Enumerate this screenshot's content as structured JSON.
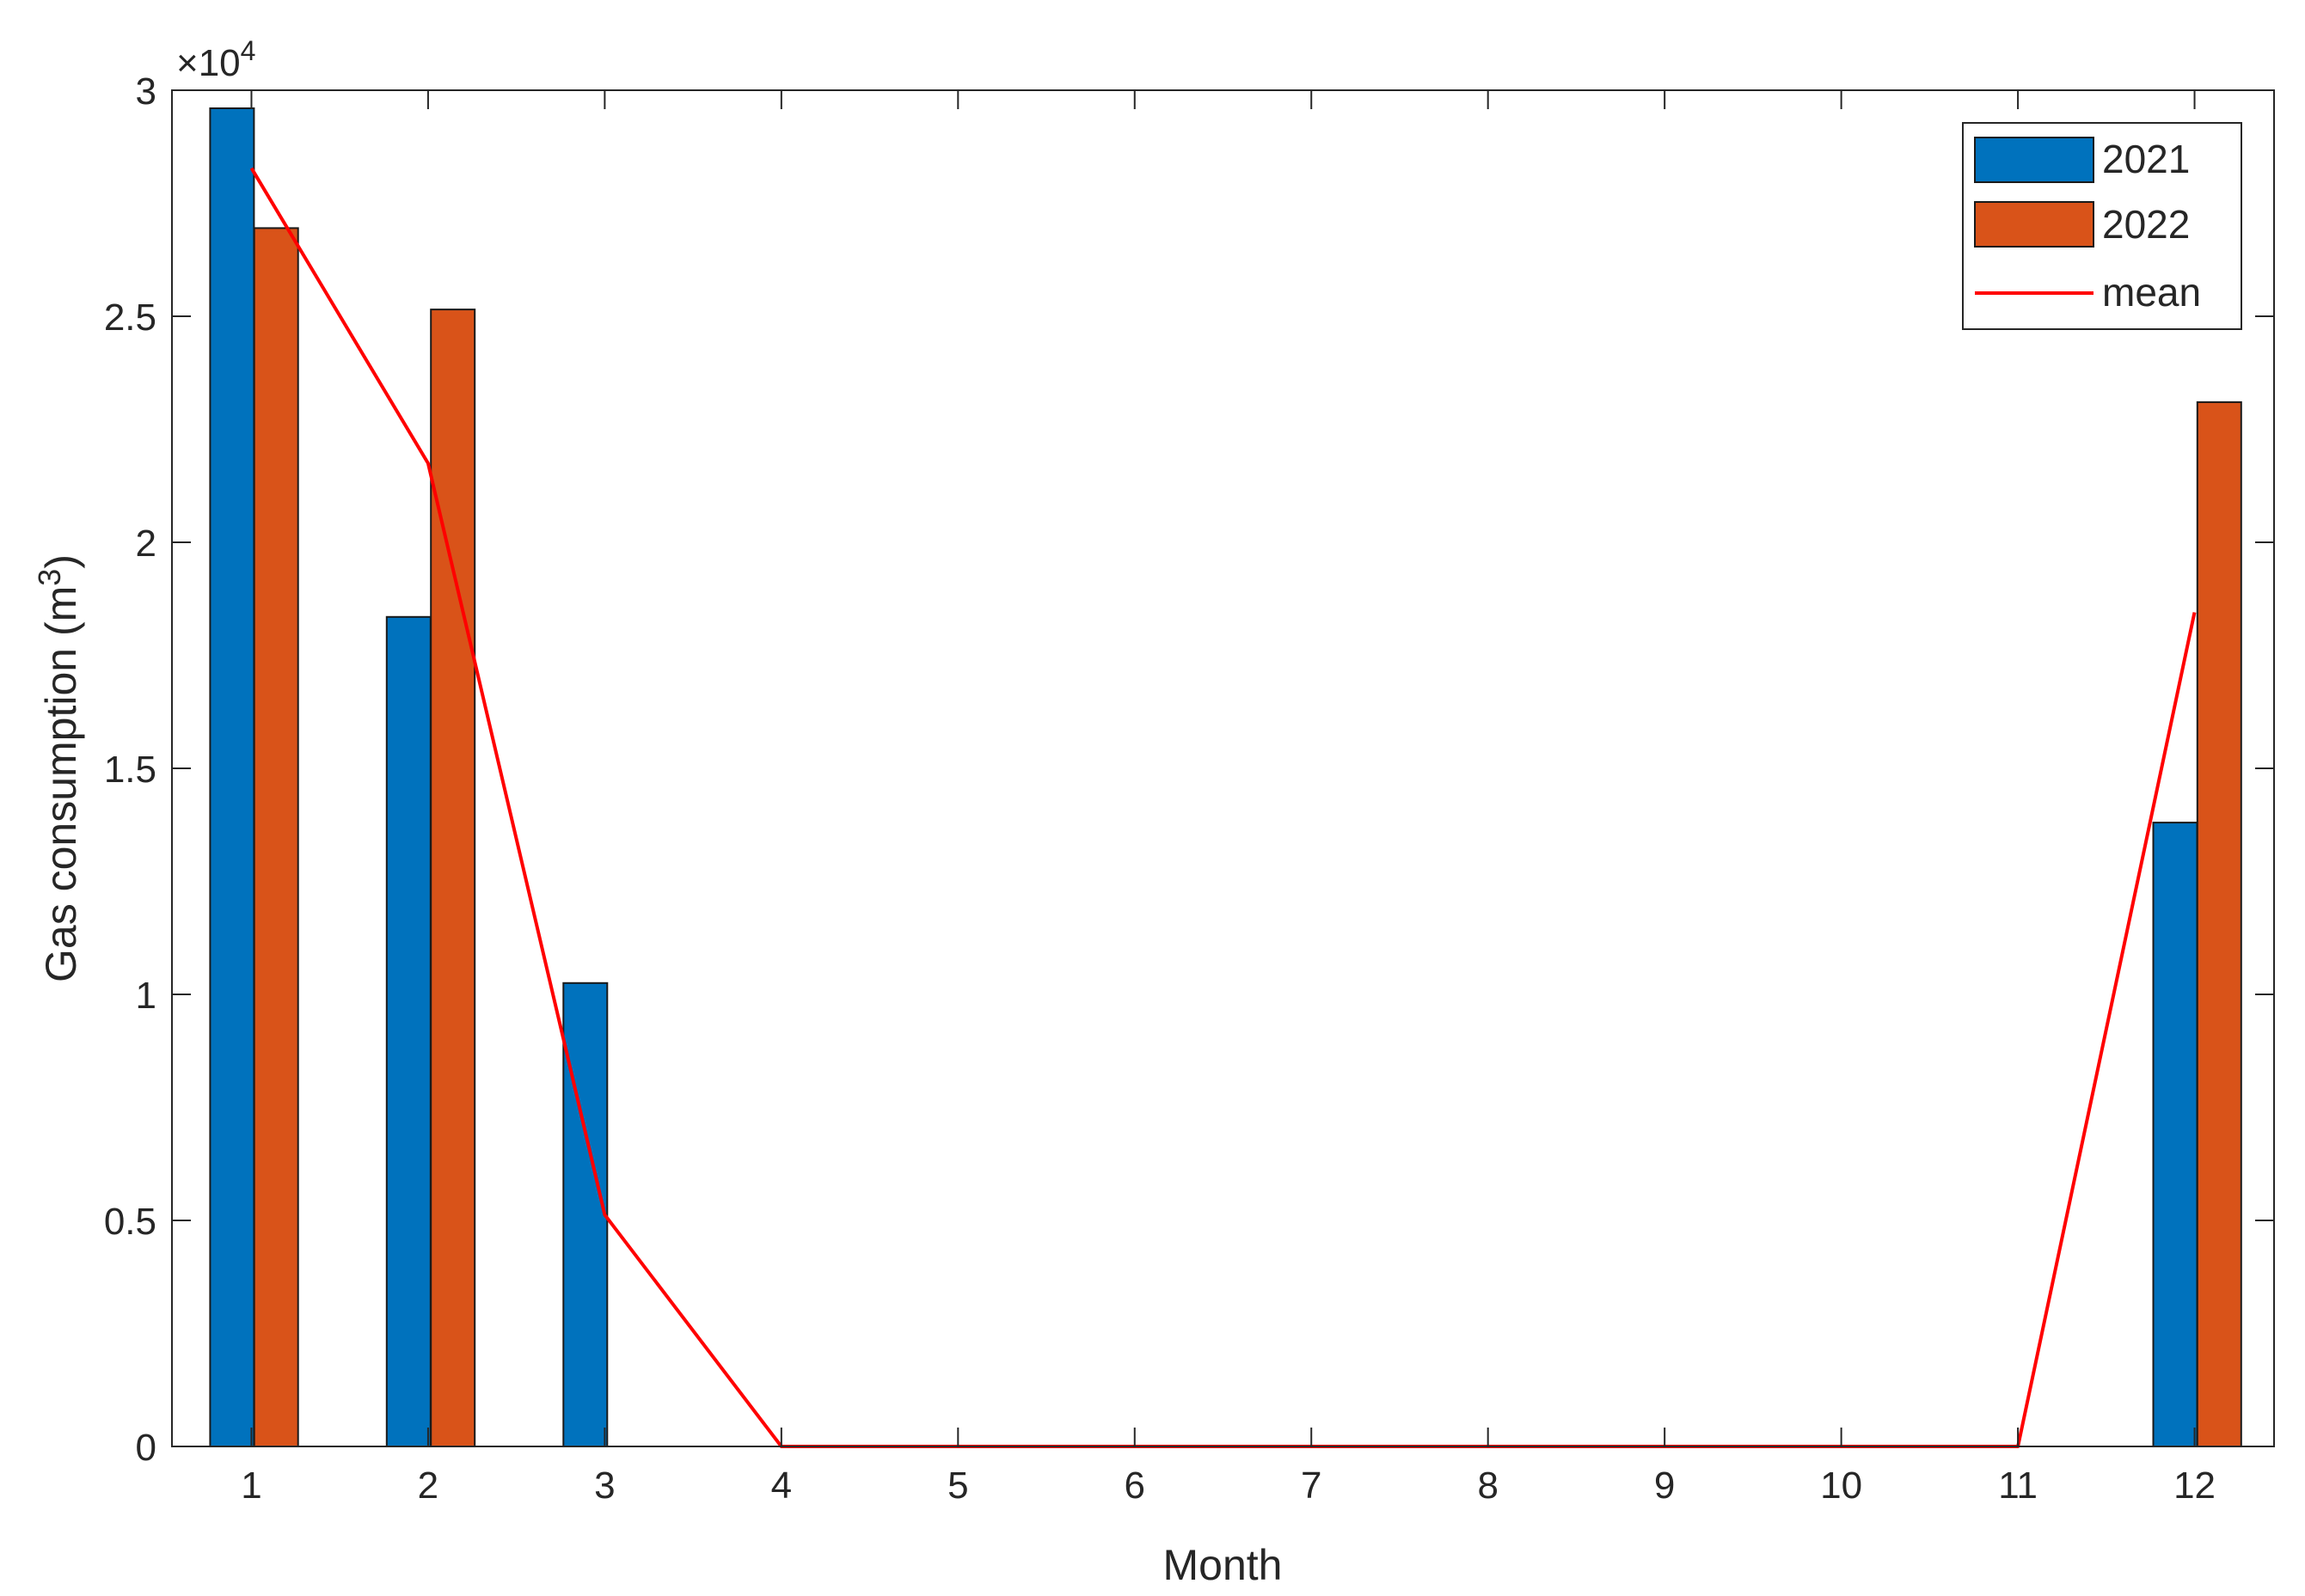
{
  "chart_data": {
    "type": "bar",
    "x": [
      1,
      2,
      3,
      4,
      5,
      6,
      7,
      8,
      9,
      10,
      11,
      12
    ],
    "xtick_labels": [
      "1",
      "2",
      "3",
      "4",
      "5",
      "6",
      "7",
      "8",
      "9",
      "10",
      "11",
      "12"
    ],
    "xlabel": "Month",
    "ylabel": "Gas consumption (m",
    "ylabel_superscript": "3",
    "ylabel_suffix": ")",
    "ylim": [
      0,
      30000
    ],
    "yticks": [
      0,
      5000,
      10000,
      15000,
      20000,
      25000,
      30000
    ],
    "ytick_labels": [
      "0",
      "0.5",
      "1",
      "1.5",
      "2",
      "2.5",
      "3"
    ],
    "exponent_prefix": "×10",
    "exponent_power": "4",
    "grid": false,
    "legend_position": "top-right",
    "series": [
      {
        "name": "2021",
        "type": "bar",
        "color": "#0072BD",
        "values": [
          29600,
          18350,
          10250,
          0,
          0,
          0,
          0,
          0,
          0,
          0,
          0,
          13800
        ]
      },
      {
        "name": "2022",
        "type": "bar",
        "color": "#D95319",
        "values": [
          26950,
          25150,
          0,
          0,
          0,
          0,
          0,
          0,
          0,
          0,
          0,
          23100
        ]
      },
      {
        "name": "mean",
        "type": "line",
        "color": "#FF0000",
        "values": [
          28275,
          21750,
          5125,
          0,
          0,
          0,
          0,
          0,
          0,
          0,
          0,
          18450
        ]
      }
    ]
  }
}
